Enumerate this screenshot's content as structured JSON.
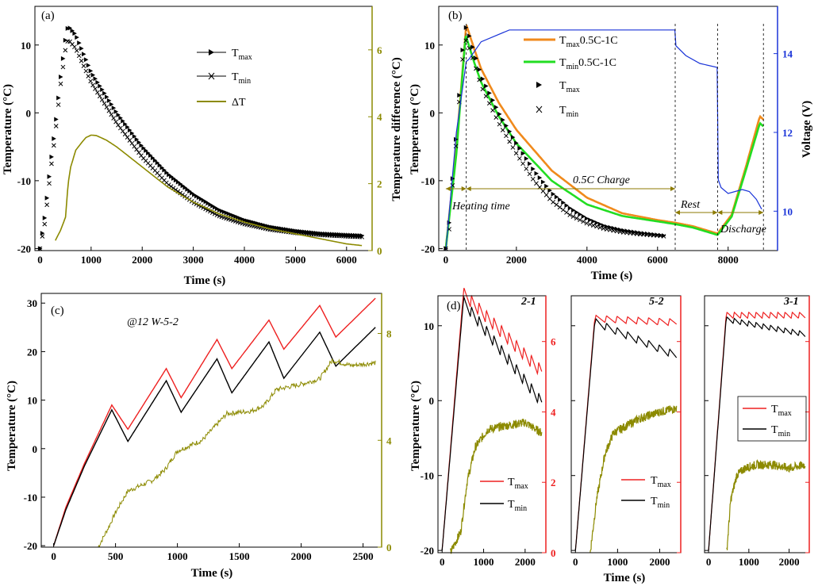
{
  "chart_data": [
    {
      "panel": "(a)",
      "type": "line",
      "xlabel": "Time (s)",
      "ylabel": "Temperature (°C)",
      "y2label": "Temperature difference (°C)",
      "xlim": [
        -100,
        6500
      ],
      "ylim": [
        -20.3,
        15.7
      ],
      "y2lim": [
        0,
        7.3
      ],
      "xticks": [
        0,
        1000,
        2000,
        3000,
        4000,
        5000,
        6000
      ],
      "yticks": [
        -20,
        -10,
        0,
        10
      ],
      "y2ticks": [
        0,
        2,
        4,
        6
      ],
      "legend": [
        {
          "key": "tmax",
          "base": "T",
          "sub": "max"
        },
        {
          "key": "tmin",
          "base": "T",
          "sub": "min"
        },
        {
          "key": "dt",
          "base": "ΔT",
          "sub": ""
        }
      ],
      "series": [
        {
          "name": "Tmax",
          "axis": "left",
          "marker": "triangle",
          "color": "#000000",
          "x": [
            0,
            100,
            200,
            300,
            400,
            500,
            550,
            700,
            1000,
            1500,
            2000,
            2500,
            3000,
            3500,
            4000,
            4500,
            5000,
            5500,
            6000,
            6300
          ],
          "y": [
            -20,
            -15,
            -8,
            -2,
            5,
            11,
            12.8,
            11.5,
            6,
            0,
            -5,
            -9,
            -12,
            -14.3,
            -15.8,
            -16.8,
            -17.4,
            -17.8,
            -18,
            -18.1
          ]
        },
        {
          "name": "Tmin",
          "axis": "left",
          "marker": "x",
          "color": "#000000",
          "x": [
            0,
            100,
            200,
            300,
            400,
            500,
            550,
            700,
            1000,
            1500,
            2000,
            2500,
            3000,
            3500,
            4000,
            4500,
            5000,
            5500,
            6000,
            6300
          ],
          "y": [
            -20,
            -16,
            -9,
            -3,
            4,
            9.5,
            10.8,
            9.5,
            4.5,
            -1.5,
            -6.5,
            -10.5,
            -13.2,
            -15.2,
            -16.4,
            -17.2,
            -17.7,
            -18,
            -18.2,
            -18.3
          ]
        },
        {
          "name": "ΔT",
          "axis": "right",
          "color": "#8c8a00",
          "x": [
            300,
            400,
            450,
            500,
            550,
            600,
            700,
            800,
            900,
            1000,
            1100,
            1300,
            1500,
            2000,
            2500,
            3000,
            3500,
            4000,
            4500,
            5000,
            5500,
            6000,
            6300
          ],
          "y": [
            0.3,
            0.6,
            0.8,
            1.0,
            2.0,
            2.5,
            3.0,
            3.2,
            3.38,
            3.45,
            3.44,
            3.3,
            3.1,
            2.5,
            1.9,
            1.45,
            1.1,
            0.85,
            0.65,
            0.5,
            0.35,
            0.2,
            0.15
          ]
        }
      ]
    },
    {
      "panel": "(b)",
      "type": "line",
      "xlabel": "Time (s)",
      "ylabel": "Temperature (°C)",
      "y2label": "Voltage (V)",
      "xlim": [
        -200,
        9400
      ],
      "ylim": [
        -20.3,
        15.7
      ],
      "y2lim": [
        9.0,
        15.2
      ],
      "xticks": [
        0,
        2000,
        4000,
        6000,
        8000
      ],
      "yticks": [
        -20,
        -10,
        0,
        10
      ],
      "y2ticks": [
        10,
        12,
        14
      ],
      "legend": [
        {
          "key": "tmax05",
          "base": "T",
          "sub": "max",
          "suffix": "0.5C-1C"
        },
        {
          "key": "tmin05",
          "base": "T",
          "sub": "min",
          "suffix": "0.5C-1C"
        },
        {
          "key": "tmax",
          "base": "T",
          "sub": "max",
          "suffix": ""
        },
        {
          "key": "tmin",
          "base": "T",
          "sub": "min",
          "suffix": ""
        }
      ],
      "annotations": {
        "heating": "Heating time",
        "charge": "0.5C Charge",
        "rest": "Rest",
        "discharge": "Discharge"
      },
      "series": [
        {
          "name": "Tmax 0.5C-1C",
          "axis": "left",
          "color": "#f08a1c",
          "x": [
            0,
            300,
            580,
            800,
            1000,
            1500,
            2000,
            3000,
            4000,
            5000,
            6000,
            6500,
            7000,
            7700,
            8100,
            8500,
            8900,
            9000
          ],
          "y": [
            -20,
            -5,
            13.0,
            9.5,
            6.5,
            1.5,
            -2.5,
            -8.5,
            -12.5,
            -14.8,
            -15.8,
            -16.2,
            -16.7,
            -17.8,
            -15,
            -8,
            -0.5,
            -1
          ]
        },
        {
          "name": "Tmin 0.5C-1C",
          "axis": "left",
          "color": "#22dd22",
          "x": [
            0,
            300,
            560,
            800,
            1000,
            1500,
            2000,
            3000,
            4000,
            5000,
            6000,
            6500,
            7000,
            7700,
            8100,
            8500,
            8900,
            9000
          ],
          "y": [
            -20,
            -6,
            11.5,
            7.5,
            4.5,
            -0.5,
            -4.5,
            -10.0,
            -13.5,
            -15.2,
            -16.0,
            -16.4,
            -16.9,
            -18.0,
            -15.3,
            -8.5,
            -1.5,
            -2
          ]
        },
        {
          "name": "Tmax",
          "axis": "left",
          "marker": "triangle",
          "color": "#000000",
          "x": [
            0,
            100,
            200,
            300,
            400,
            500,
            580,
            800,
            1000,
            1500,
            2000,
            2500,
            3000,
            3500,
            4000,
            4500,
            5000,
            5500,
            6000,
            6200
          ],
          "y": [
            -20,
            -16,
            -9,
            -3,
            4,
            11,
            12.8,
            9,
            5.5,
            0,
            -4.5,
            -8.5,
            -11.8,
            -14,
            -15.6,
            -16.7,
            -17.3,
            -17.7,
            -18,
            -18.1
          ]
        },
        {
          "name": "Tmin",
          "axis": "left",
          "marker": "x",
          "color": "#000000",
          "x": [
            0,
            100,
            200,
            300,
            400,
            500,
            580,
            800,
            1000,
            1500,
            2000,
            2500,
            3000,
            3500,
            4000,
            4500,
            5000,
            5500,
            6000,
            6200
          ],
          "y": [
            -20,
            -17,
            -10,
            -4,
            3,
            9.5,
            10.8,
            7.5,
            4,
            -1.5,
            -6,
            -10,
            -13,
            -15,
            -16.3,
            -17.1,
            -17.6,
            -17.9,
            -18.1,
            -18.2
          ]
        },
        {
          "name": "Voltage",
          "axis": "right",
          "color": "#1a34d8",
          "x": [
            0,
            300,
            580,
            650,
            1000,
            1800,
            2500,
            4000,
            5000,
            6000,
            6490,
            6520,
            6800,
            7200,
            7690,
            7720,
            7800,
            8000,
            8200,
            8400,
            8600,
            8800,
            8950
          ],
          "y": [
            9.0,
            12.0,
            13.8,
            13.85,
            14.3,
            14.6,
            14.6,
            14.6,
            14.6,
            14.6,
            14.6,
            14.2,
            13.95,
            13.75,
            13.65,
            10.8,
            10.6,
            10.45,
            10.5,
            10.55,
            10.5,
            10.3,
            10.05
          ]
        }
      ]
    },
    {
      "panel": "(c)",
      "type": "line",
      "xlabel": "Time (s)",
      "ylabel": "Temperature (°C)",
      "xlim": [
        -100,
        2650
      ],
      "ylim": [
        -20.3,
        32
      ],
      "y2lim": [
        0,
        9.5
      ],
      "xticks": [
        0,
        500,
        1000,
        1500,
        2000,
        2500
      ],
      "yticks": [
        -20,
        -10,
        0,
        10,
        20,
        30
      ],
      "y2ticks": [
        0,
        4,
        8
      ],
      "annotation": "@12 W-5-2",
      "series": [
        {
          "name": "Tmax",
          "axis": "left",
          "color": "#ee2020",
          "x": [
            0,
            100,
            250,
            470,
            600,
            910,
            1030,
            1320,
            1440,
            1740,
            1860,
            2150,
            2280,
            2600
          ],
          "y": [
            -20,
            -12,
            -3,
            9,
            4,
            16.5,
            10.5,
            22.5,
            16.5,
            26.5,
            20.5,
            29.5,
            23,
            31
          ]
        },
        {
          "name": "Tmin",
          "axis": "left",
          "color": "#000000",
          "x": [
            0,
            100,
            250,
            470,
            600,
            910,
            1030,
            1320,
            1440,
            1740,
            1860,
            2150,
            2280,
            2600
          ],
          "y": [
            -20,
            -12.5,
            -3.5,
            8,
            1.5,
            14,
            7.5,
            18.5,
            11.5,
            22,
            14.5,
            24,
            17,
            25
          ]
        },
        {
          "name": "ΔT",
          "axis": "right",
          "color": "#8c8a00",
          "x": [
            360,
            450,
            500,
            600,
            800,
            900,
            1000,
            1200,
            1300,
            1400,
            1600,
            1700,
            1800,
            2000,
            2150,
            2250,
            2400,
            2600
          ],
          "y": [
            0,
            0.8,
            1.3,
            2.1,
            2.5,
            2.9,
            3.6,
            4.0,
            4.5,
            5.0,
            5.1,
            5.3,
            5.9,
            6.1,
            6.3,
            7.0,
            6.8,
            6.9
          ]
        }
      ]
    },
    {
      "panel": "(d)",
      "type": "line",
      "ylabel": "Temperature (°C)",
      "xlabel": "Time (s)",
      "ylim": [
        -20.3,
        14
      ],
      "y2lim": [
        0,
        7.3
      ],
      "xlim": [
        -100,
        2500
      ],
      "xticks": [
        0,
        1000,
        2000
      ],
      "yticks": [
        -20,
        -10,
        0,
        10
      ],
      "y2ticks": [
        0,
        2,
        4,
        6
      ],
      "subpanels": [
        {
          "label": "2-1",
          "series": [
            {
              "name": "Tmax",
              "axis": "left",
              "color": "#ee2020",
              "x": [
                0,
                500,
                2400
              ],
              "y": [
                -20,
                13.5,
                3
              ],
              "osc": 1.7,
              "period": 180
            },
            {
              "name": "Tmin",
              "axis": "left",
              "color": "#000000",
              "x": [
                0,
                500,
                2400
              ],
              "y": [
                -20,
                12.5,
                -1
              ],
              "osc": 1.5,
              "period": 180
            },
            {
              "name": "ΔT",
              "axis": "right",
              "color": "#8c8a00",
              "x": [
                200,
                450,
                600,
                800,
                1100,
                1500,
                2000,
                2400
              ],
              "y": [
                0,
                0.6,
                2.0,
                3.0,
                3.5,
                3.6,
                3.7,
                3.4
              ]
            }
          ]
        },
        {
          "label": "5-2",
          "series": [
            {
              "name": "Tmax",
              "axis": "left",
              "color": "#ee2020",
              "x": [
                0,
                450,
                2400
              ],
              "y": [
                -20,
                10.5,
                10
              ],
              "osc": 0.9,
              "period": 250
            },
            {
              "name": "Tmin",
              "axis": "left",
              "color": "#000000",
              "x": [
                0,
                450,
                2400
              ],
              "y": [
                -20,
                10,
                5.5
              ],
              "osc": 1.0,
              "period": 250
            },
            {
              "name": "ΔT",
              "axis": "right",
              "color": "#8c8a00",
              "x": [
                350,
                500,
                700,
                900,
                1200,
                1500,
                2000,
                2400
              ],
              "y": [
                0,
                1.5,
                2.8,
                3.4,
                3.6,
                3.8,
                4.0,
                4.1
              ]
            }
          ]
        },
        {
          "label": "3-1",
          "series": [
            {
              "name": "Tmax",
              "axis": "left",
              "color": "#ee2020",
              "x": [
                0,
                430,
                2400
              ],
              "y": [
                -20,
                11,
                11
              ],
              "osc": 0.8,
              "period": 180
            },
            {
              "name": "Tmin",
              "axis": "left",
              "color": "#000000",
              "x": [
                0,
                430,
                2400
              ],
              "y": [
                -20,
                10.5,
                8.5
              ],
              "osc": 0.7,
              "period": 180
            },
            {
              "name": "ΔT",
              "axis": "right",
              "color": "#8c8a00",
              "x": [
                450,
                550,
                700,
                900,
                1200,
                1600,
                2000,
                2400
              ],
              "y": [
                0,
                1.5,
                2.2,
                2.4,
                2.5,
                2.5,
                2.4,
                2.5
              ]
            }
          ]
        }
      ],
      "legend": [
        {
          "key": "tmax",
          "base": "T",
          "sub": "max"
        },
        {
          "key": "tmin",
          "base": "T",
          "sub": "min"
        }
      ]
    }
  ]
}
